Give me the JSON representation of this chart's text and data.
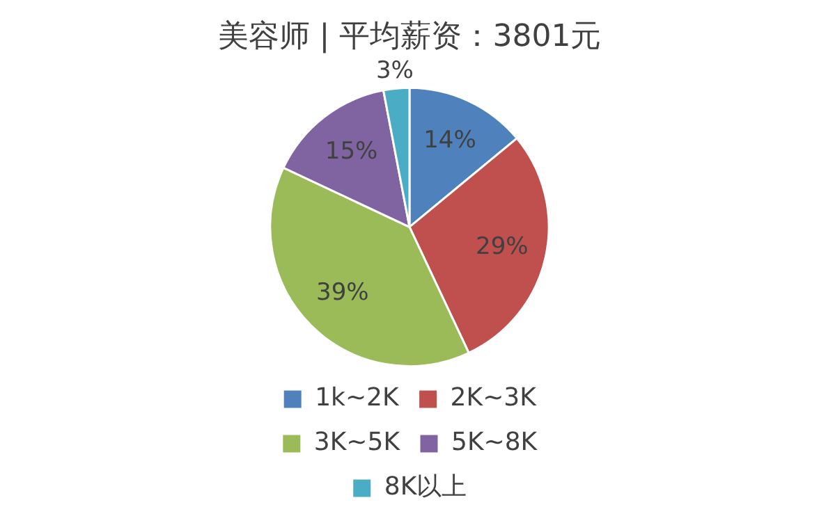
{
  "chart_data": {
    "type": "pie",
    "title": "美容师 | 平均薪资：3801元",
    "categories": [
      "1k~2K",
      "2K~3K",
      "3K~5K",
      "5K~8K",
      "8K以上"
    ],
    "values": [
      14,
      29,
      39,
      15,
      3
    ],
    "value_labels": [
      "14%",
      "29%",
      "39%",
      "15%",
      "3%"
    ],
    "colors": [
      "#4f81bd",
      "#c0504d",
      "#9bbb59",
      "#8064a2",
      "#4bacc6"
    ],
    "legend": "bottom"
  }
}
